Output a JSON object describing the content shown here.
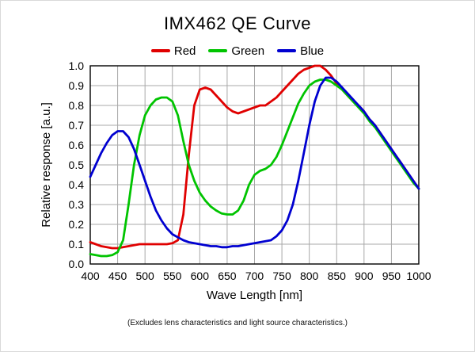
{
  "chart_data": {
    "type": "line",
    "title": "IMX462  QE Curve",
    "xlabel": "Wave Length [nm]",
    "ylabel": "Relative response [a.u.]",
    "footnote": "(Excludes lens characteristics and light source characteristics.)",
    "xlim": [
      400,
      1000
    ],
    "ylim": [
      0.0,
      1.0
    ],
    "grid": true,
    "grid_color": "#a8a8a8",
    "legend_position": "top",
    "x_ticks": [
      400,
      450,
      500,
      550,
      600,
      650,
      700,
      750,
      800,
      850,
      900,
      950,
      1000
    ],
    "y_tick_labels": [
      "0.0",
      "0.1",
      "0.2",
      "0.3",
      "0.4",
      "0.5",
      "0.6",
      "0.7",
      "0.8",
      "0.9",
      "1.0"
    ],
    "x": [
      400,
      410,
      420,
      430,
      440,
      450,
      460,
      470,
      480,
      490,
      500,
      510,
      520,
      530,
      540,
      550,
      560,
      570,
      580,
      590,
      600,
      610,
      620,
      630,
      640,
      650,
      660,
      670,
      680,
      690,
      700,
      710,
      720,
      730,
      740,
      750,
      760,
      770,
      780,
      790,
      800,
      810,
      820,
      830,
      840,
      850,
      860,
      870,
      880,
      890,
      900,
      910,
      920,
      930,
      940,
      950,
      960,
      970,
      980,
      990,
      1000
    ],
    "series": [
      {
        "name": "Red",
        "color": "#e00000",
        "values": [
          0.11,
          0.1,
          0.09,
          0.085,
          0.08,
          0.08,
          0.085,
          0.09,
          0.095,
          0.1,
          0.1,
          0.1,
          0.1,
          0.1,
          0.1,
          0.105,
          0.12,
          0.25,
          0.55,
          0.8,
          0.88,
          0.89,
          0.88,
          0.85,
          0.82,
          0.79,
          0.77,
          0.76,
          0.77,
          0.78,
          0.79,
          0.8,
          0.8,
          0.82,
          0.84,
          0.87,
          0.9,
          0.93,
          0.96,
          0.98,
          0.99,
          1.0,
          1.0,
          0.98,
          0.95,
          0.91,
          0.88,
          0.85,
          0.82,
          0.8,
          0.77,
          0.73,
          0.7,
          0.66,
          0.62,
          0.58,
          0.54,
          0.5,
          0.46,
          0.42,
          0.38
        ]
      },
      {
        "name": "Green",
        "color": "#00c400",
        "values": [
          0.05,
          0.045,
          0.04,
          0.04,
          0.045,
          0.06,
          0.12,
          0.3,
          0.5,
          0.65,
          0.75,
          0.8,
          0.83,
          0.84,
          0.84,
          0.82,
          0.75,
          0.62,
          0.5,
          0.42,
          0.36,
          0.32,
          0.29,
          0.27,
          0.255,
          0.25,
          0.25,
          0.27,
          0.32,
          0.4,
          0.45,
          0.47,
          0.48,
          0.5,
          0.54,
          0.6,
          0.67,
          0.74,
          0.81,
          0.86,
          0.9,
          0.92,
          0.93,
          0.93,
          0.92,
          0.9,
          0.88,
          0.85,
          0.82,
          0.79,
          0.76,
          0.72,
          0.69,
          0.65,
          0.61,
          0.57,
          0.53,
          0.49,
          0.45,
          0.41,
          0.38
        ]
      },
      {
        "name": "Blue",
        "color": "#0000d0",
        "values": [
          0.44,
          0.5,
          0.56,
          0.61,
          0.65,
          0.67,
          0.67,
          0.64,
          0.58,
          0.5,
          0.42,
          0.34,
          0.27,
          0.22,
          0.18,
          0.15,
          0.135,
          0.12,
          0.11,
          0.105,
          0.1,
          0.095,
          0.09,
          0.09,
          0.085,
          0.085,
          0.09,
          0.09,
          0.095,
          0.1,
          0.105,
          0.11,
          0.115,
          0.12,
          0.14,
          0.17,
          0.22,
          0.3,
          0.42,
          0.56,
          0.7,
          0.82,
          0.9,
          0.94,
          0.94,
          0.92,
          0.89,
          0.86,
          0.83,
          0.8,
          0.77,
          0.73,
          0.7,
          0.66,
          0.62,
          0.58,
          0.54,
          0.5,
          0.46,
          0.42,
          0.38
        ]
      }
    ]
  }
}
